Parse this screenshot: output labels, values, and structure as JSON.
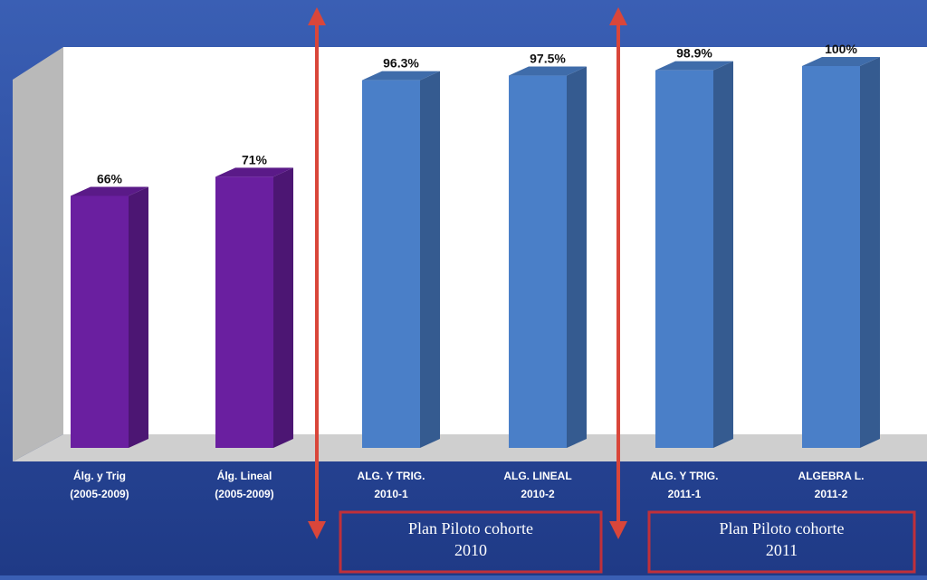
{
  "chart_data": {
    "type": "bar",
    "categories": [
      [
        "Álg. y Trig",
        "(2005-2009)"
      ],
      [
        "Álg. Lineal",
        "(2005-2009)"
      ],
      [
        "ALG. Y TRIG.",
        "2010-1"
      ],
      [
        "ALG. LINEAL",
        "2010-2"
      ],
      [
        "ALG. Y TRIG.",
        "2011-1"
      ],
      [
        "ALGEBRA L.",
        "2011-2"
      ]
    ],
    "values": [
      66,
      71,
      96.3,
      97.5,
      98.9,
      100
    ],
    "value_labels": [
      "66%",
      "71%",
      "96.3%",
      "97.5%",
      "98.9%",
      "100%"
    ],
    "bar_colors": [
      "#6a1fa0",
      "#6a1fa0",
      "#4a7fc8",
      "#4a7fc8",
      "#4a7fc8",
      "#4a7fc8"
    ],
    "ylim": [
      0,
      100
    ],
    "grid": false,
    "legend": "none",
    "title": "",
    "xlabel": "",
    "ylabel": ""
  },
  "annotations": [
    {
      "text": [
        "Plan Piloto cohorte",
        "2010"
      ]
    },
    {
      "text": [
        "Plan Piloto cohorte",
        "2011"
      ]
    }
  ],
  "colors": {
    "background": "#2b4a9c",
    "plot_wall": "#ffffff",
    "floor": "#cfcfcf",
    "arrow": "#d9463a",
    "box_border": "#c0303a"
  }
}
